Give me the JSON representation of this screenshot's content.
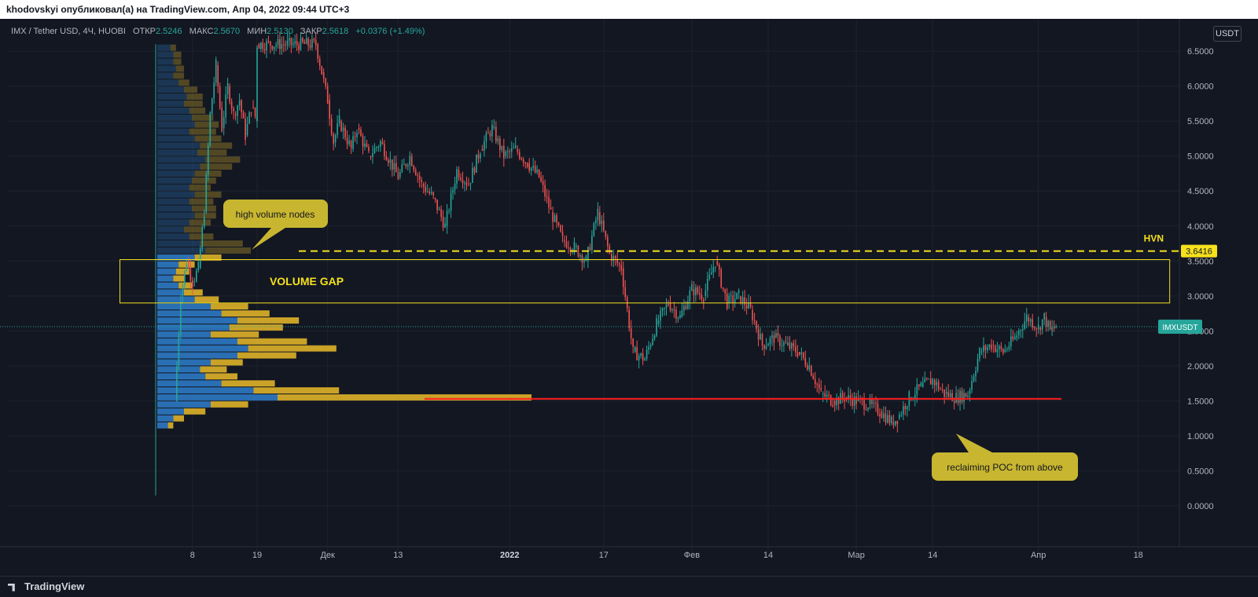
{
  "header": {
    "publish_line": "khodovskyi опубликовал(а) на TradingView.com, Апр 04, 2022 09:44 UTC+3"
  },
  "legend": {
    "symbol": "IMX / Tether USD, 4Ч, HUOBI",
    "open_label": "ОТКР",
    "open_value": "2.5246",
    "high_label": "МАКС",
    "high_value": "2.5670",
    "low_label": "МИН",
    "low_value": "2.5130",
    "close_label": "ЗАКР",
    "close_value": "2.5618",
    "change": "+0.0376 (+1.49%)"
  },
  "currency_button": "USDT",
  "footer": {
    "brand": "TradingView"
  },
  "colors": {
    "background": "#131722",
    "up": "#26a69a",
    "down": "#ef5350",
    "profile_blue": "#2a6fb3",
    "profile_gold": "#c9a227",
    "hvn_line": "#f5e11c",
    "poc_line": "#ff1f1f",
    "annotation_bg": "#c8b630",
    "price_tag": "#26a69a"
  },
  "chart_data": {
    "type": "candlestick",
    "title": "IMX / Tether USD, 4Ч, HUOBI",
    "y_axis": {
      "ticks": [
        "6.5000",
        "6.0000",
        "5.5000",
        "5.0000",
        "4.5000",
        "4.0000",
        "3.5000",
        "3.0000",
        "2.5000",
        "2.0000",
        "1.5000",
        "1.0000",
        "0.5000",
        "0.0000"
      ],
      "range": [
        -0.45,
        6.85
      ]
    },
    "x_axis": {
      "ticks": [
        "8",
        "19",
        "Дек",
        "13",
        "2022",
        "17",
        "Фев",
        "14",
        "Мар",
        "14",
        "Апр",
        "18"
      ],
      "range": [
        "2021-11-02",
        "2022-04-25"
      ]
    },
    "price_path": [
      [
        "2021-11-05",
        1.5
      ],
      [
        "2021-11-06",
        3.0
      ],
      [
        "2021-11-07",
        3.5
      ],
      [
        "2021-11-08",
        3.2
      ],
      [
        "2021-11-09",
        3.4
      ],
      [
        "2021-11-10",
        4.2
      ],
      [
        "2021-11-11",
        5.6
      ],
      [
        "2021-11-12",
        6.3
      ],
      [
        "2021-11-13",
        5.4
      ],
      [
        "2021-11-14",
        6.0
      ],
      [
        "2021-11-15",
        5.6
      ],
      [
        "2021-11-16",
        5.8
      ],
      [
        "2021-11-17",
        5.3
      ],
      [
        "2021-11-18",
        5.7
      ],
      [
        "2021-11-19",
        5.5
      ],
      [
        "2021-11-19",
        6.6
      ],
      [
        "2021-11-29",
        6.6
      ],
      [
        "2021-11-30",
        6.2
      ],
      [
        "2021-12-01",
        5.8
      ],
      [
        "2021-12-02",
        5.2
      ],
      [
        "2021-12-03",
        5.5
      ],
      [
        "2021-12-05",
        5.1
      ],
      [
        "2021-12-06",
        5.4
      ],
      [
        "2021-12-08",
        5.0
      ],
      [
        "2021-12-10",
        5.2
      ],
      [
        "2021-12-13",
        4.7
      ],
      [
        "2021-12-15",
        5.0
      ],
      [
        "2021-12-17",
        4.6
      ],
      [
        "2021-12-19",
        4.4
      ],
      [
        "2021-12-21",
        4.0
      ],
      [
        "2021-12-23",
        4.8
      ],
      [
        "2021-12-25",
        4.6
      ],
      [
        "2021-12-27",
        5.1
      ],
      [
        "2021-12-29",
        5.4
      ],
      [
        "2021-12-31",
        5.0
      ],
      [
        "2022-01-02",
        5.1
      ],
      [
        "2022-01-04",
        4.9
      ],
      [
        "2022-01-06",
        4.7
      ],
      [
        "2022-01-08",
        4.2
      ],
      [
        "2022-01-10",
        3.8
      ],
      [
        "2022-01-12",
        3.7
      ],
      [
        "2022-01-14",
        3.5
      ],
      [
        "2022-01-16",
        4.2
      ],
      [
        "2022-01-18",
        3.6
      ],
      [
        "2022-01-20",
        3.4
      ],
      [
        "2022-01-21",
        2.8
      ],
      [
        "2022-01-22",
        2.2
      ],
      [
        "2022-01-24",
        2.1
      ],
      [
        "2022-01-26",
        2.6
      ],
      [
        "2022-01-28",
        2.9
      ],
      [
        "2022-01-30",
        2.7
      ],
      [
        "2022-02-01",
        3.1
      ],
      [
        "2022-02-03",
        3.0
      ],
      [
        "2022-02-05",
        3.5
      ],
      [
        "2022-02-07",
        2.9
      ],
      [
        "2022-02-09",
        3.0
      ],
      [
        "2022-02-11",
        2.8
      ],
      [
        "2022-02-13",
        2.3
      ],
      [
        "2022-02-15",
        2.4
      ],
      [
        "2022-02-17",
        2.3
      ],
      [
        "2022-02-19",
        2.2
      ],
      [
        "2022-02-21",
        2.0
      ],
      [
        "2022-02-23",
        1.6
      ],
      [
        "2022-02-25",
        1.5
      ],
      [
        "2022-02-27",
        1.55
      ],
      [
        "2022-03-01",
        1.5
      ],
      [
        "2022-03-03",
        1.45
      ],
      [
        "2022-03-05",
        1.35
      ],
      [
        "2022-03-07",
        1.2
      ],
      [
        "2022-03-08",
        1.25
      ],
      [
        "2022-03-10",
        1.55
      ],
      [
        "2022-03-12",
        1.7
      ],
      [
        "2022-03-14",
        1.8
      ],
      [
        "2022-03-16",
        1.6
      ],
      [
        "2022-03-18",
        1.55
      ],
      [
        "2022-03-20",
        1.6
      ],
      [
        "2022-03-22",
        2.2
      ],
      [
        "2022-03-24",
        2.3
      ],
      [
        "2022-03-26",
        2.2
      ],
      [
        "2022-03-28",
        2.4
      ],
      [
        "2022-03-30",
        2.7
      ],
      [
        "2022-04-01",
        2.55
      ],
      [
        "2022-04-02",
        2.7
      ],
      [
        "2022-04-03",
        2.5
      ],
      [
        "2022-04-04",
        2.56
      ]
    ],
    "volume_profile": {
      "rows": [
        [
          6.55,
          0.05,
          0.02
        ],
        [
          6.45,
          0.06,
          0.03
        ],
        [
          6.35,
          0.06,
          0.03
        ],
        [
          6.25,
          0.07,
          0.03
        ],
        [
          6.15,
          0.06,
          0.04
        ],
        [
          6.05,
          0.08,
          0.04
        ],
        [
          5.95,
          0.1,
          0.05
        ],
        [
          5.85,
          0.11,
          0.06
        ],
        [
          5.75,
          0.1,
          0.07
        ],
        [
          5.65,
          0.12,
          0.06
        ],
        [
          5.55,
          0.13,
          0.08
        ],
        [
          5.45,
          0.14,
          0.09
        ],
        [
          5.35,
          0.12,
          0.1
        ],
        [
          5.25,
          0.14,
          0.1
        ],
        [
          5.15,
          0.16,
          0.12
        ],
        [
          5.05,
          0.15,
          0.11
        ],
        [
          4.95,
          0.18,
          0.13
        ],
        [
          4.85,
          0.16,
          0.12
        ],
        [
          4.75,
          0.14,
          0.1
        ],
        [
          4.65,
          0.13,
          0.09
        ],
        [
          4.55,
          0.12,
          0.08
        ],
        [
          4.45,
          0.14,
          0.1
        ],
        [
          4.35,
          0.12,
          0.09
        ],
        [
          4.25,
          0.13,
          0.09
        ],
        [
          4.15,
          0.14,
          0.08
        ],
        [
          4.05,
          0.12,
          0.08
        ],
        [
          3.95,
          0.1,
          0.07
        ],
        [
          3.85,
          0.12,
          0.09
        ],
        [
          3.75,
          0.16,
          0.16
        ],
        [
          3.65,
          0.18,
          0.17
        ],
        [
          3.55,
          0.14,
          0.1
        ],
        [
          3.45,
          0.08,
          0.06
        ],
        [
          3.35,
          0.07,
          0.05
        ],
        [
          3.25,
          0.06,
          0.04
        ],
        [
          3.15,
          0.08,
          0.05
        ],
        [
          3.05,
          0.1,
          0.07
        ],
        [
          2.95,
          0.14,
          0.09
        ],
        [
          2.85,
          0.2,
          0.14
        ],
        [
          2.75,
          0.24,
          0.18
        ],
        [
          2.65,
          0.3,
          0.23
        ],
        [
          2.55,
          0.27,
          0.2
        ],
        [
          2.45,
          0.2,
          0.18
        ],
        [
          2.35,
          0.3,
          0.26
        ],
        [
          2.25,
          0.34,
          0.33
        ],
        [
          2.15,
          0.3,
          0.22
        ],
        [
          2.05,
          0.2,
          0.12
        ],
        [
          1.95,
          0.16,
          0.1
        ],
        [
          1.85,
          0.18,
          0.12
        ],
        [
          1.75,
          0.24,
          0.2
        ],
        [
          1.65,
          0.36,
          0.32
        ],
        [
          1.55,
          0.45,
          0.95
        ],
        [
          1.45,
          0.2,
          0.14
        ],
        [
          1.35,
          0.1,
          0.08
        ],
        [
          1.25,
          0.06,
          0.04
        ],
        [
          1.15,
          0.04,
          0.02
        ]
      ],
      "poc": 1.53
    },
    "annotations": {
      "hvn_price": 3.6416,
      "hvn_label": "HVN",
      "hvn_tag": "3.6416",
      "gap_label": "VOLUME GAP",
      "gap_range": [
        2.9,
        3.52
      ],
      "gap_dates": [
        "2021-11-01",
        "2022-04-18"
      ],
      "poc_label": "reclaiming POC from above",
      "hvn_note": "high volume nodes",
      "last_price": 2.5618,
      "last_label": "IMXUSDT"
    }
  }
}
